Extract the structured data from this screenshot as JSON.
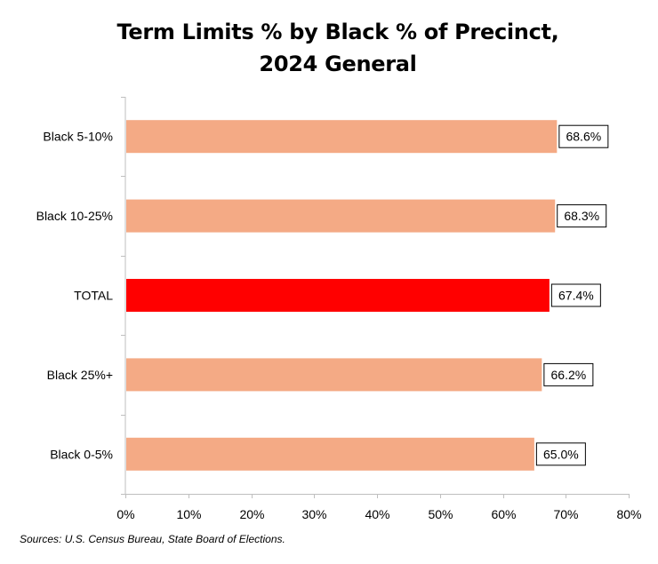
{
  "title_line1": "Term Limits % by Black % of Precinct,",
  "title_line2": "2024 General",
  "source": "Sources: U.S. Census Bureau, State Board of Elections.",
  "chart_data": {
    "type": "bar",
    "orientation": "horizontal",
    "title": "Term Limits % by Black % of Precinct, 2024 General",
    "categories": [
      "Black 5-10%",
      "Black 10-25%",
      "TOTAL",
      "Black 25%+",
      "Black 0-5%"
    ],
    "values": [
      68.6,
      68.3,
      67.4,
      66.2,
      65.0
    ],
    "data_labels": [
      "68.6%",
      "68.3%",
      "67.4%",
      "66.2%",
      "65.0%"
    ],
    "bar_colors": [
      "#F4AA85",
      "#F4AA85",
      "#FF0000",
      "#F4AA85",
      "#F4AA85"
    ],
    "xlim": [
      0,
      80
    ],
    "x_ticks": [
      0,
      10,
      20,
      30,
      40,
      50,
      60,
      70,
      80
    ],
    "x_tick_labels": [
      "0%",
      "10%",
      "20%",
      "30%",
      "40%",
      "50%",
      "60%",
      "70%",
      "80%"
    ],
    "xlabel": "",
    "ylabel": "",
    "grid": false,
    "legend": "none"
  }
}
